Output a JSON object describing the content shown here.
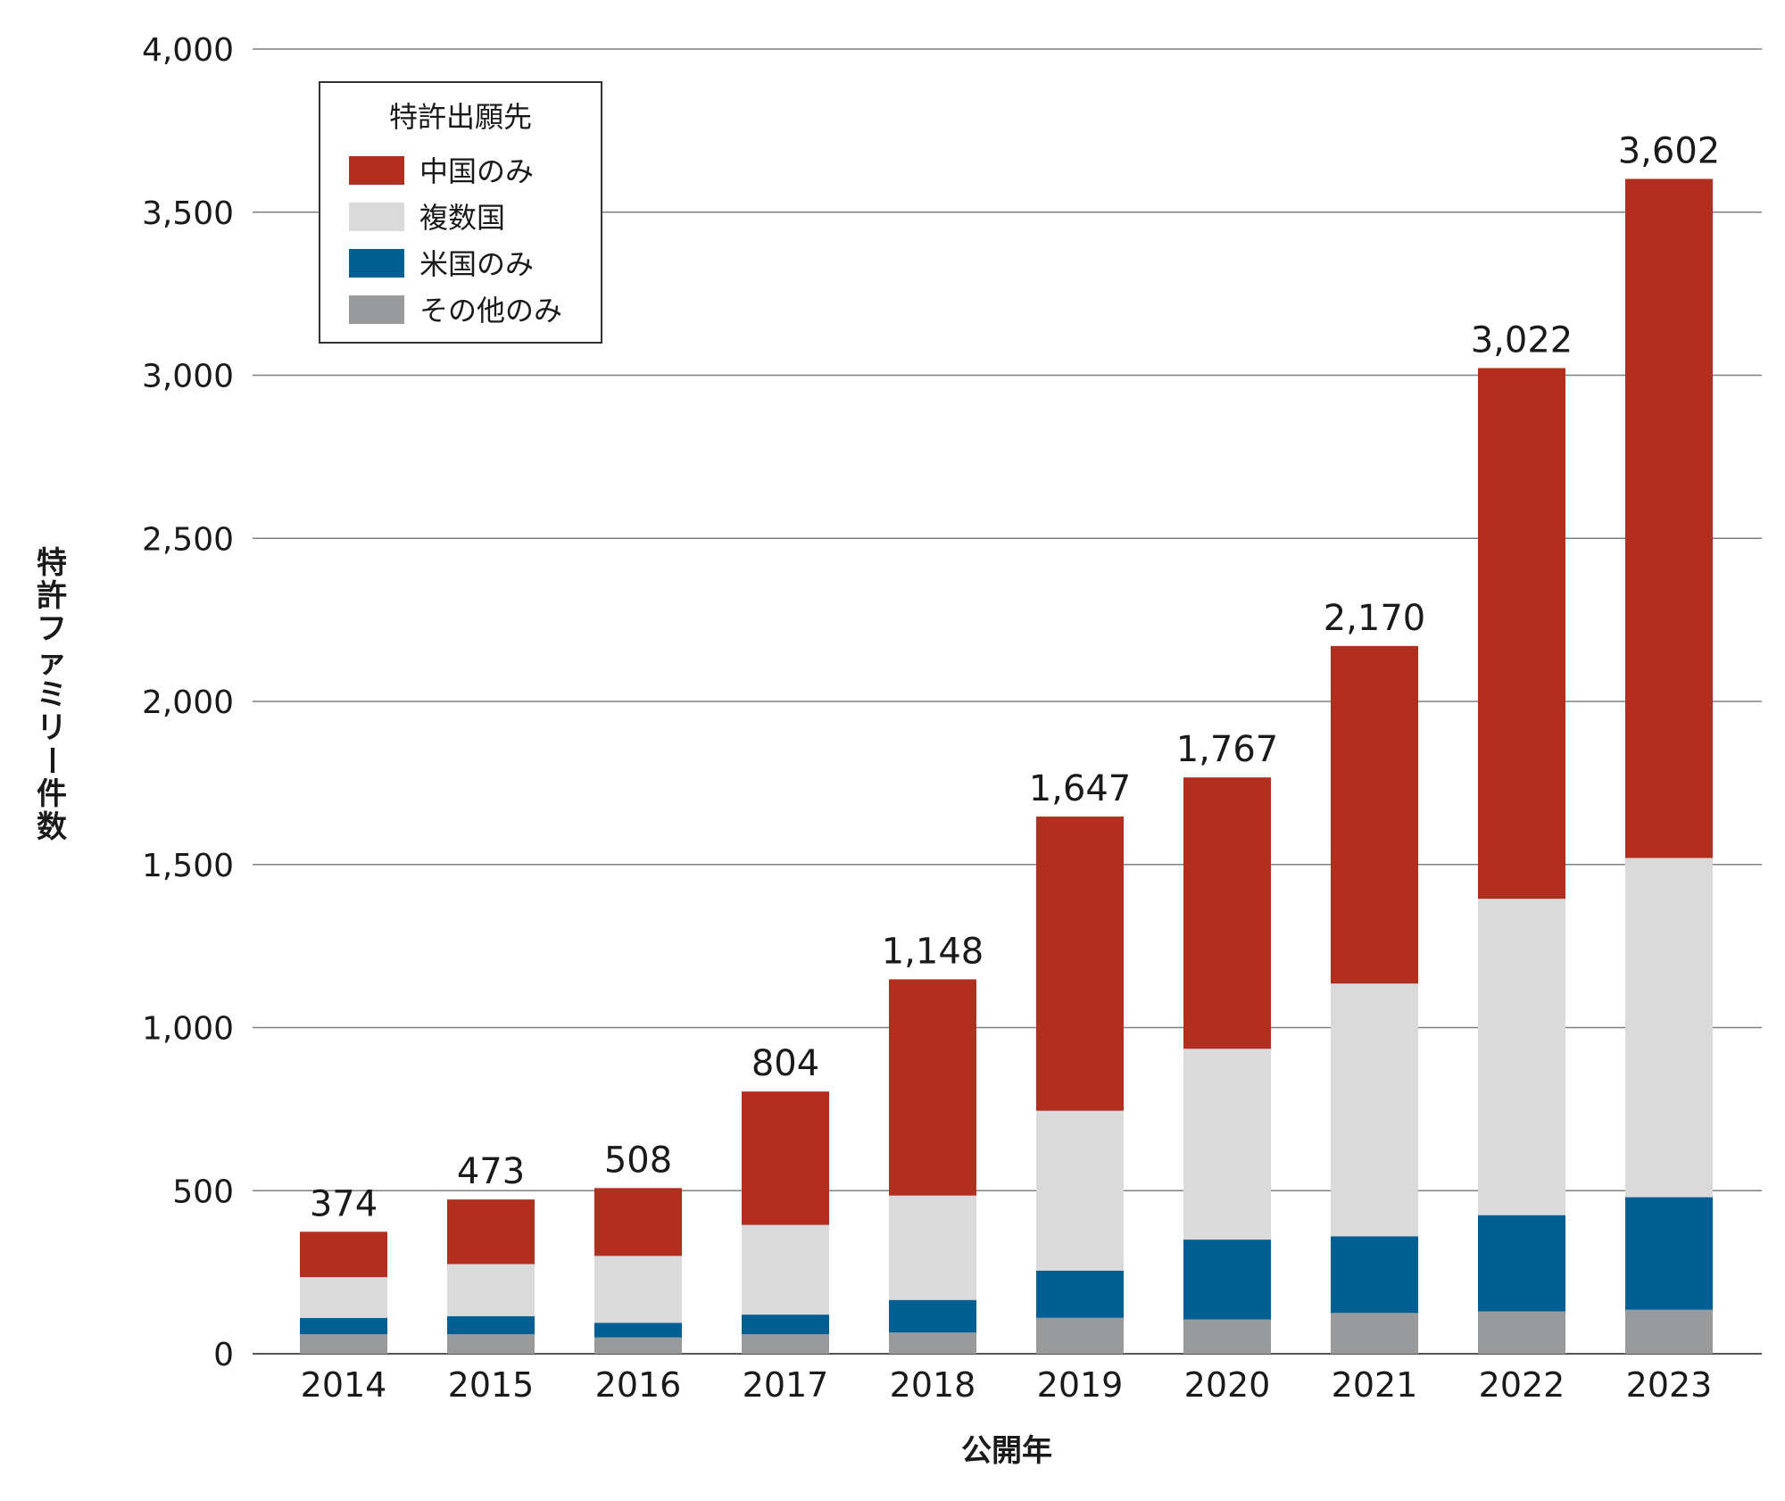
{
  "chart_data": {
    "type": "bar",
    "stacked": true,
    "categories": [
      "2014",
      "2015",
      "2016",
      "2017",
      "2018",
      "2019",
      "2020",
      "2021",
      "2022",
      "2023"
    ],
    "series": [
      {
        "name": "その他のみ",
        "color": "#999a9c",
        "values": [
          60,
          60,
          50,
          60,
          65,
          110,
          105,
          125,
          130,
          135
        ]
      },
      {
        "name": "米国のみ",
        "color": "#005f92",
        "values": [
          50,
          55,
          45,
          60,
          100,
          145,
          245,
          235,
          295,
          345
        ]
      },
      {
        "name": "複数国",
        "color": "#dadadb",
        "values": [
          125,
          160,
          205,
          275,
          320,
          490,
          585,
          775,
          970,
          1040
        ]
      },
      {
        "name": "中国のみ",
        "color": "#b22f20",
        "values": [
          139,
          198,
          208,
          409,
          663,
          902,
          832,
          1035,
          1627,
          2082
        ]
      }
    ],
    "totals": [
      374,
      473,
      508,
      804,
      1148,
      1647,
      1767,
      2170,
      3022,
      3602
    ],
    "total_labels": [
      "374",
      "473",
      "508",
      "804",
      "1,148",
      "1,647",
      "1,767",
      "2,170",
      "3,022",
      "3,602"
    ],
    "y_ticks": [
      0,
      500,
      1000,
      1500,
      2000,
      2500,
      3000,
      3500,
      4000
    ],
    "y_tick_labels": [
      "0",
      "500",
      "1,000",
      "1,500",
      "2,000",
      "2,500",
      "3,000",
      "3,500",
      "4,000"
    ],
    "ylim": [
      0,
      4000
    ],
    "xlabel": "公開年",
    "ylabel": "特許ファミリー件数",
    "legend": {
      "title": "特許出願先",
      "position": "top-left",
      "order": [
        "中国のみ",
        "複数国",
        "米国のみ",
        "その他のみ"
      ]
    },
    "grid": true
  }
}
